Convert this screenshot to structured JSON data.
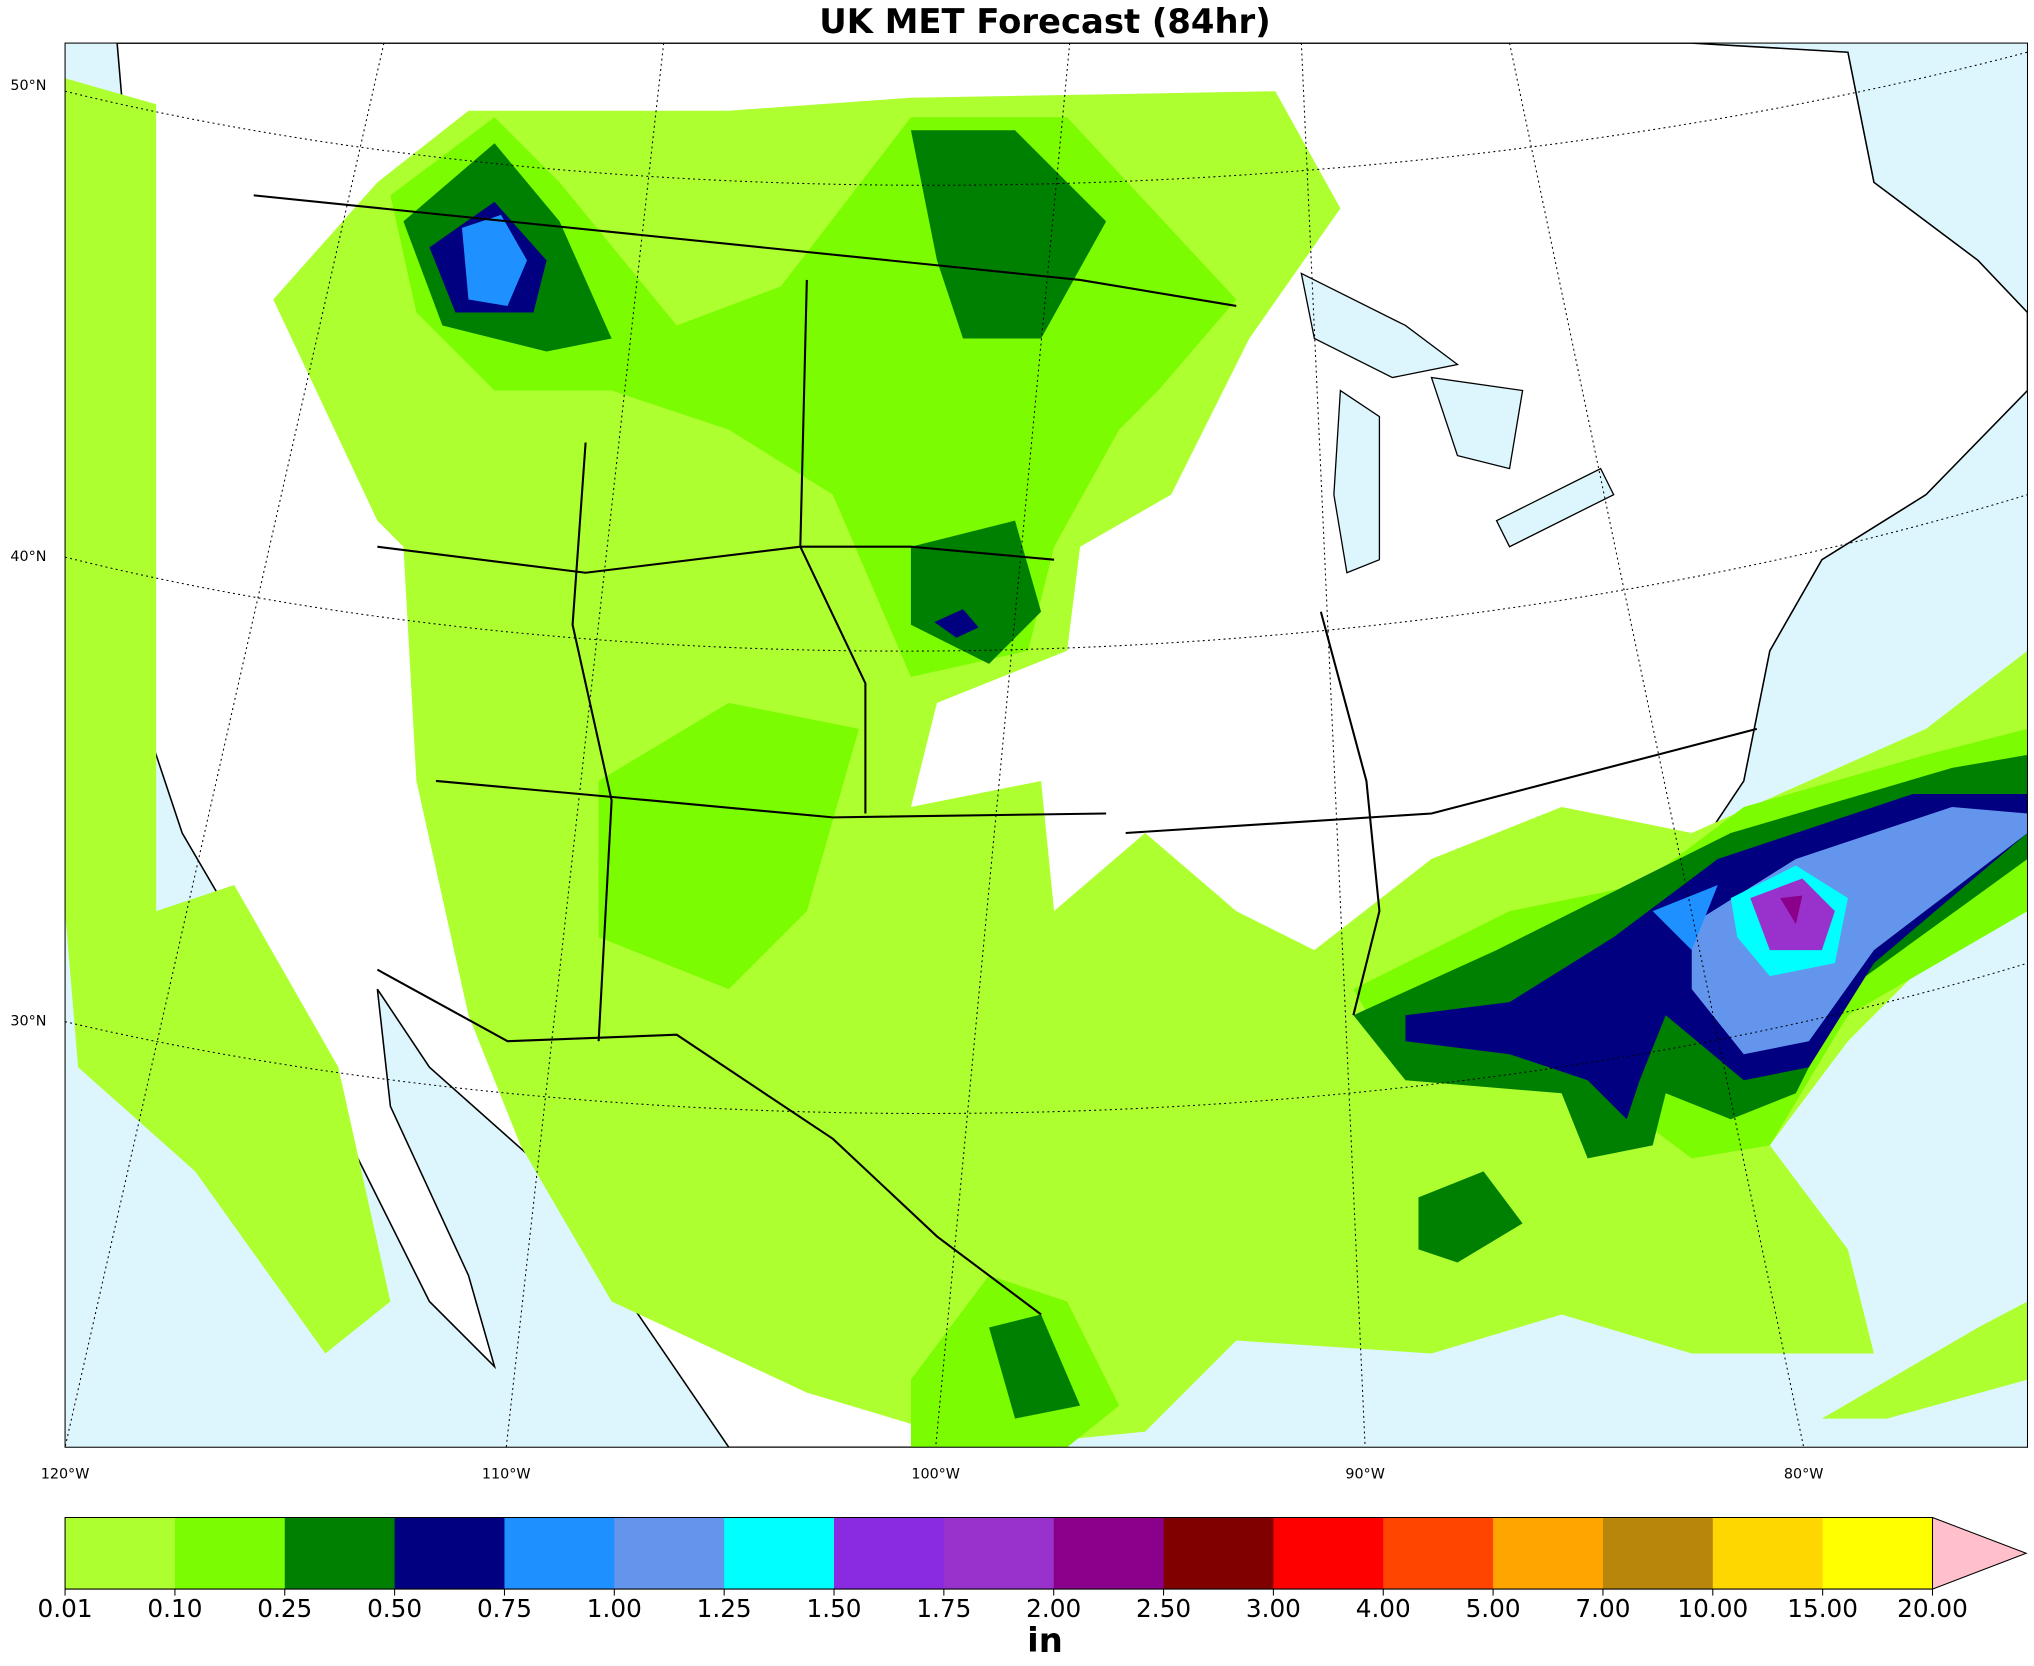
{
  "header": {
    "title": "UK MET Forecast (84hr)"
  },
  "map": {
    "lat_labels": [
      "50°N",
      "40°N",
      "30°N"
    ],
    "lon_labels": [
      "120°W",
      "110°W",
      "100°W",
      "90°W",
      "80°W"
    ]
  },
  "colorbar": {
    "unit": "in",
    "ticks": [
      {
        "value": 0.01,
        "label": "0.01"
      },
      {
        "value": 0.1,
        "label": "0.10"
      },
      {
        "value": 0.25,
        "label": "0.25"
      },
      {
        "value": 0.5,
        "label": "0.50"
      },
      {
        "value": 0.75,
        "label": "0.75"
      },
      {
        "value": 1,
        "label": "1.00"
      },
      {
        "value": 1.25,
        "label": "1.25"
      },
      {
        "value": 1.5,
        "label": "1.50"
      },
      {
        "value": 1.75,
        "label": "1.75"
      },
      {
        "value": 2,
        "label": "2.00"
      },
      {
        "value": 2.5,
        "label": "2.50"
      },
      {
        "value": 3,
        "label": "3.00"
      },
      {
        "value": 4,
        "label": "4.00"
      },
      {
        "value": 5,
        "label": "5.00"
      },
      {
        "value": 7,
        "label": "7.00"
      },
      {
        "value": 10,
        "label": "10.00"
      },
      {
        "value": 15,
        "label": "15.00"
      },
      {
        "value": 20,
        "label": "20.00"
      }
    ],
    "colors": [
      "#adff2f",
      "#7cfc00",
      "#008000",
      "#000080",
      "#1e90ff",
      "#6495ed",
      "#00ffff",
      "#8a2be2",
      "#9932cc",
      "#8b008b",
      "#800000",
      "#ff0000",
      "#ff4500",
      "#ffa500",
      "#b8860b",
      "#ffd700",
      "#ffff00"
    ],
    "extend_color": "#ffc0cb"
  }
}
